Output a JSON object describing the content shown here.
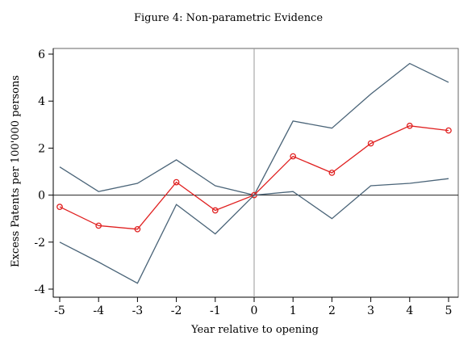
{
  "chart_data": {
    "type": "line",
    "title": "Figure 4: Non-parametric Evidence",
    "xlabel": "Year relative to opening",
    "ylabel": "Excess Patents per 100'000 persons",
    "x": [
      -5,
      -4,
      -3,
      -2,
      -1,
      0,
      1,
      2,
      3,
      4,
      5
    ],
    "x_tick_labels": [
      "-5",
      "-4",
      "-3",
      "-2",
      "-1",
      "0",
      "1",
      "2",
      "3",
      "4",
      "5"
    ],
    "y_ticks": [
      -4,
      -2,
      0,
      2,
      4,
      6
    ],
    "y_tick_labels": [
      "-4",
      "-2",
      "0",
      "2",
      "4",
      "6"
    ],
    "xlim": [
      -5,
      5
    ],
    "ylim": [
      -4,
      6
    ],
    "grid": false,
    "reference_lines": {
      "horizontal_y": 0,
      "vertical_x": 0
    },
    "series": [
      {
        "role": "upper-bound",
        "color": "#4a6478",
        "marker": "none",
        "values": [
          1.2,
          0.15,
          0.5,
          1.5,
          0.4,
          0.0,
          3.15,
          2.85,
          4.3,
          5.6,
          4.8
        ]
      },
      {
        "role": "estimate",
        "color": "#e02020",
        "marker": "hollow-circle",
        "values": [
          -0.5,
          -1.3,
          -1.45,
          0.55,
          -0.65,
          0.0,
          1.65,
          0.95,
          2.2,
          2.95,
          2.75
        ]
      },
      {
        "role": "lower-bound",
        "color": "#4a6478",
        "marker": "none",
        "values": [
          -2.0,
          -2.85,
          -3.75,
          -0.4,
          -1.65,
          0.0,
          0.15,
          -1.0,
          0.4,
          0.5,
          0.7
        ]
      }
    ]
  }
}
